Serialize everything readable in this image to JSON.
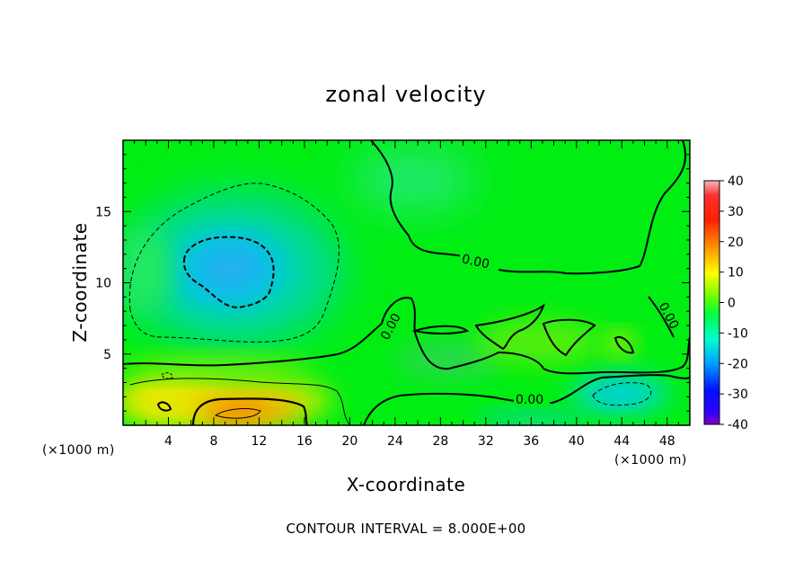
{
  "chart_data": {
    "type": "heatmap",
    "title": "zonal velocity",
    "xlabel": "X-coordinate",
    "ylabel": "Z-coordinate",
    "x_unit": "(×1000 m)",
    "xlim": [
      0,
      50
    ],
    "ylim": [
      0,
      20
    ],
    "x_ticks": [
      4,
      8,
      12,
      16,
      20,
      24,
      28,
      32,
      36,
      40,
      44,
      48
    ],
    "y_ticks": [
      5,
      10,
      15
    ],
    "colorbar": {
      "ticks": [
        40,
        30,
        20,
        10,
        0,
        -10,
        -20,
        -30,
        -40
      ],
      "range": [
        -40,
        40
      ]
    },
    "contour_interval_text": "CONTOUR INTERVAL = 8.000E+00",
    "contour_labels": [
      "0.00",
      "0.00",
      "0.00",
      "0.00"
    ],
    "features": [
      {
        "kind": "min",
        "x": 10.5,
        "z": 11,
        "value": -16
      },
      {
        "kind": "min",
        "x": 45,
        "z": 2.2,
        "value": -9
      },
      {
        "kind": "max",
        "x": 10.5,
        "z": 1,
        "value": 22
      },
      {
        "kind": "max",
        "x": 4,
        "z": 1.5,
        "value": 12
      }
    ]
  }
}
